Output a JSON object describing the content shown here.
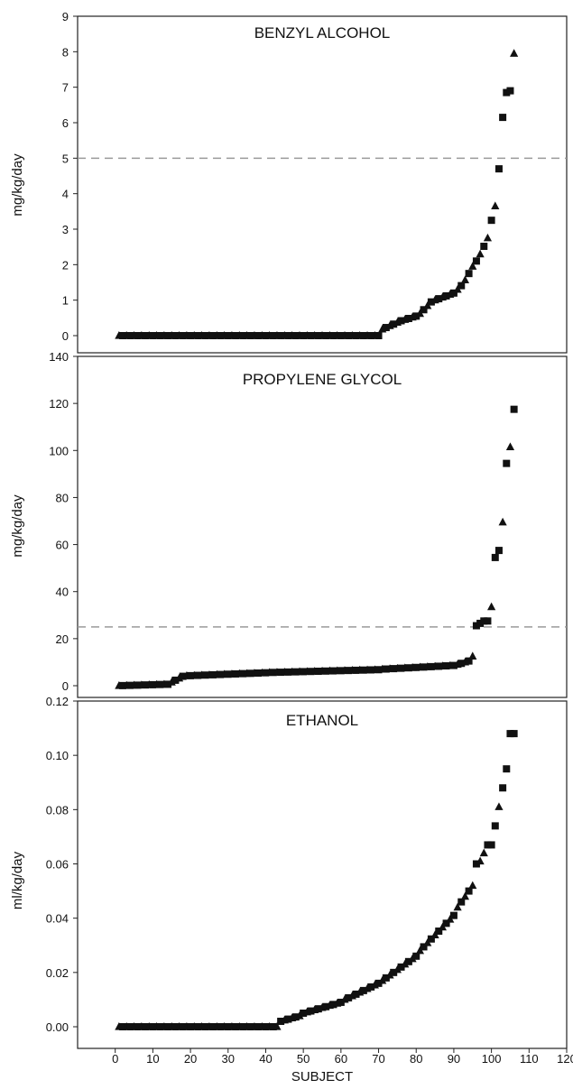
{
  "figure": {
    "xlabel": "SUBJECT",
    "x_ticks": [
      "0",
      "10",
      "20",
      "30",
      "40",
      "50",
      "60",
      "70",
      "80",
      "90",
      "100",
      "110",
      "120"
    ]
  },
  "chart_data": [
    {
      "type": "scatter",
      "title": "BENZYL ALCOHOL",
      "ylabel": "mg/kg/day",
      "xlabel": "SUBJECT",
      "xlim": [
        -10,
        120
      ],
      "ylim": [
        0,
        9
      ],
      "yticks": [
        "0",
        "1",
        "2",
        "3",
        "4",
        "5",
        "6",
        "7",
        "8",
        "9"
      ],
      "reference_line": 5,
      "markers": [
        "triangle",
        "square"
      ],
      "segments": [
        {
          "x0": 1,
          "x1": 70,
          "y0": 0,
          "y1": 0,
          "p": 0
        },
        {
          "x0": 71,
          "x1": 76,
          "y0": 0.18,
          "y1": 0.42,
          "p": 1
        },
        {
          "x0": 77,
          "x1": 80,
          "y0": 0.45,
          "y1": 0.55,
          "p": 1
        },
        {
          "x0": 81,
          "x1": 84,
          "y0": 0.62,
          "y1": 0.95,
          "p": 1
        },
        {
          "x0": 85,
          "x1": 90,
          "y0": 1.0,
          "y1": 1.2,
          "p": 1
        },
        {
          "x0": 91,
          "x1": 94,
          "y0": 1.3,
          "y1": 1.75,
          "p": 1.3
        },
        {
          "x0": 95,
          "x1": 99,
          "y0": 1.95,
          "y1": 2.75,
          "p": 1.2
        }
      ],
      "points": [
        {
          "x": 100,
          "y": 3.25,
          "m": "square"
        },
        {
          "x": 101,
          "y": 3.65,
          "m": "triangle"
        },
        {
          "x": 102,
          "y": 4.7,
          "m": "square"
        },
        {
          "x": 103,
          "y": 6.15,
          "m": "square"
        },
        {
          "x": 104,
          "y": 6.85,
          "m": "square"
        },
        {
          "x": 105,
          "y": 6.9,
          "m": "square"
        },
        {
          "x": 106,
          "y": 7.95,
          "m": "triangle"
        }
      ]
    },
    {
      "type": "scatter",
      "title": "PROPYLENE GLYCOL",
      "ylabel": "mg/kg/day",
      "xlabel": "SUBJECT",
      "xlim": [
        -10,
        120
      ],
      "ylim": [
        0,
        140
      ],
      "yticks": [
        "0",
        "20",
        "40",
        "60",
        "80",
        "100",
        "120",
        "140"
      ],
      "reference_line": 25,
      "markers": [
        "triangle",
        "square"
      ],
      "segments": [
        {
          "x0": 1,
          "x1": 14,
          "y0": 0,
          "y1": 0.6,
          "p": 1
        },
        {
          "x0": 15,
          "x1": 18,
          "y0": 1.5,
          "y1": 4.0,
          "p": 1
        },
        {
          "x0": 19,
          "x1": 40,
          "y0": 4.2,
          "y1": 5.5,
          "p": 1
        },
        {
          "x0": 41,
          "x1": 70,
          "y0": 5.6,
          "y1": 6.8,
          "p": 1
        },
        {
          "x0": 71,
          "x1": 90,
          "y0": 7.0,
          "y1": 8.6,
          "p": 1
        },
        {
          "x0": 91,
          "x1": 94,
          "y0": 9.0,
          "y1": 10.5,
          "p": 1
        },
        {
          "x0": 95,
          "x1": 95,
          "y0": 12.5,
          "y1": 12.5,
          "p": 1
        }
      ],
      "points": [
        {
          "x": 96,
          "y": 25.5,
          "m": "square"
        },
        {
          "x": 97,
          "y": 26.5,
          "m": "square"
        },
        {
          "x": 98,
          "y": 27.5,
          "m": "square"
        },
        {
          "x": 99,
          "y": 27.5,
          "m": "square"
        },
        {
          "x": 100,
          "y": 33.5,
          "m": "triangle"
        },
        {
          "x": 101,
          "y": 54.5,
          "m": "square"
        },
        {
          "x": 102,
          "y": 57.5,
          "m": "square"
        },
        {
          "x": 103,
          "y": 69.5,
          "m": "triangle"
        },
        {
          "x": 104,
          "y": 94.5,
          "m": "square"
        },
        {
          "x": 105,
          "y": 101.5,
          "m": "triangle"
        },
        {
          "x": 106,
          "y": 117.5,
          "m": "square"
        }
      ]
    },
    {
      "type": "scatter",
      "title": "ETHANOL",
      "ylabel": "ml/kg/day",
      "xlabel": "SUBJECT",
      "xlim": [
        -10,
        120
      ],
      "ylim": [
        0,
        0.12
      ],
      "yticks": [
        "0.00",
        "0.02",
        "0.04",
        "0.06",
        "0.08",
        "0.10",
        "0.12"
      ],
      "reference_line": null,
      "markers": [
        "triangle",
        "square"
      ],
      "segments": [
        {
          "x0": 1,
          "x1": 43,
          "y0": 0,
          "y1": 0,
          "p": 1
        },
        {
          "x0": 44,
          "x1": 49,
          "y0": 0.002,
          "y1": 0.004,
          "p": 1
        },
        {
          "x0": 50,
          "x1": 60,
          "y0": 0.005,
          "y1": 0.009,
          "p": 1
        },
        {
          "x0": 61,
          "x1": 70,
          "y0": 0.01,
          "y1": 0.016,
          "p": 1
        },
        {
          "x0": 71,
          "x1": 80,
          "y0": 0.017,
          "y1": 0.026,
          "p": 1
        },
        {
          "x0": 81,
          "x1": 90,
          "y0": 0.028,
          "y1": 0.041,
          "p": 1
        },
        {
          "x0": 91,
          "x1": 95,
          "y0": 0.044,
          "y1": 0.052,
          "p": 1
        }
      ],
      "points": [
        {
          "x": 96,
          "y": 0.06,
          "m": "square"
        },
        {
          "x": 97,
          "y": 0.061,
          "m": "triangle"
        },
        {
          "x": 98,
          "y": 0.064,
          "m": "triangle"
        },
        {
          "x": 99,
          "y": 0.067,
          "m": "square"
        },
        {
          "x": 100,
          "y": 0.067,
          "m": "square"
        },
        {
          "x": 101,
          "y": 0.074,
          "m": "square"
        },
        {
          "x": 102,
          "y": 0.081,
          "m": "triangle"
        },
        {
          "x": 103,
          "y": 0.088,
          "m": "square"
        },
        {
          "x": 104,
          "y": 0.095,
          "m": "square"
        },
        {
          "x": 105,
          "y": 0.108,
          "m": "square"
        },
        {
          "x": 106,
          "y": 0.108,
          "m": "square"
        }
      ]
    }
  ],
  "colors": {
    "marker": "#111111",
    "axis": "#222222",
    "reference_line": "#9a9a9a"
  }
}
